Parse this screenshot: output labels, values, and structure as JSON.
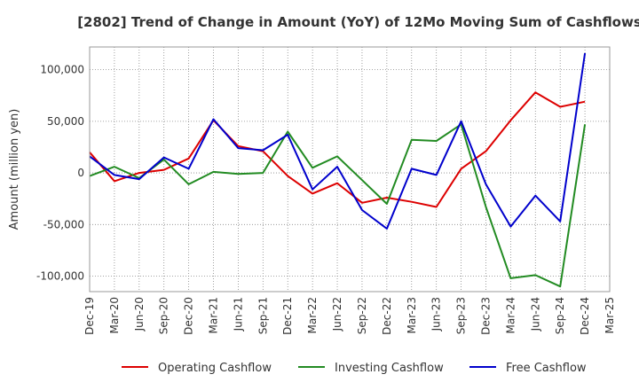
{
  "chart_data": {
    "type": "line",
    "title": "[2802]  Trend of Change in Amount (YoY) of 12Mo Moving Sum of Cashflows",
    "xlabel": "",
    "ylabel": "Amount (million yen)",
    "ylim": [
      -115000,
      122000
    ],
    "yticks": [
      100000,
      50000,
      0,
      -50000,
      -100000
    ],
    "ytick_labels": [
      "100,000",
      "50,000",
      "0",
      "-50,000",
      "-100,000"
    ],
    "grid": true,
    "legend_position": "bottom",
    "categories": [
      "Dec-19",
      "Mar-20",
      "Jun-20",
      "Sep-20",
      "Dec-20",
      "Mar-21",
      "Jun-21",
      "Sep-21",
      "Dec-21",
      "Mar-22",
      "Jun-22",
      "Sep-22",
      "Dec-22",
      "Mar-23",
      "Jun-23",
      "Sep-23",
      "Dec-23",
      "Mar-24",
      "Jun-24",
      "Sep-24",
      "Dec-24",
      "Mar-25"
    ],
    "series": [
      {
        "name": "Operating Cashflow",
        "color": "#dd0000",
        "values": [
          20000,
          -8000,
          0,
          3000,
          14000,
          51000,
          26000,
          21000,
          -3000,
          -20000,
          -10000,
          -29000,
          -24000,
          -28000,
          -33000,
          4000,
          21000,
          51000,
          78000,
          64000,
          69000,
          null
        ]
      },
      {
        "name": "Investing Cashflow",
        "color": "#228b22",
        "values": [
          -3000,
          6000,
          -5000,
          13000,
          -11000,
          1000,
          -1000,
          0,
          40000,
          5000,
          16000,
          -7000,
          -30000,
          32000,
          31000,
          47000,
          -33000,
          -102000,
          -99000,
          -110000,
          47000,
          null
        ]
      },
      {
        "name": "Free Cashflow",
        "color": "#0000cc",
        "values": [
          16000,
          -2000,
          -6000,
          15000,
          4000,
          52000,
          24000,
          22000,
          37000,
          -16000,
          6000,
          -36000,
          -54000,
          4000,
          -2000,
          50000,
          -11000,
          -52000,
          -22000,
          -47000,
          116000,
          null
        ]
      }
    ]
  }
}
